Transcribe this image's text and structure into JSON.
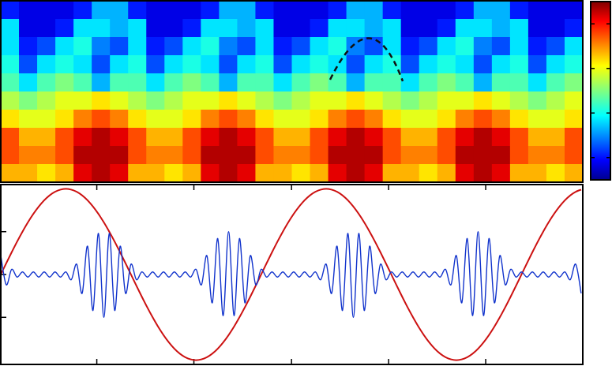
{
  "chart_data": [
    {
      "type": "heatmap",
      "colormap": "jet",
      "zlim": [
        0,
        1
      ],
      "zticks": [
        0.125,
        0.375,
        0.625,
        0.875
      ],
      "z": [
        [
          0.15,
          0.1,
          0.1,
          0.1,
          0.15,
          0.3,
          0.3,
          0.15,
          0.1,
          0.1,
          0.1,
          0.15,
          0.3,
          0.3,
          0.15,
          0.1,
          0.1,
          0.1,
          0.15,
          0.3,
          0.3,
          0.15,
          0.1,
          0.1,
          0.1,
          0.15,
          0.3,
          0.3,
          0.15,
          0.1,
          0.1,
          0.1
        ],
        [
          0.35,
          0.1,
          0.1,
          0.15,
          0.35,
          0.35,
          0.3,
          0.35,
          0.1,
          0.1,
          0.15,
          0.35,
          0.35,
          0.3,
          0.35,
          0.1,
          0.1,
          0.15,
          0.35,
          0.35,
          0.3,
          0.35,
          0.1,
          0.1,
          0.15,
          0.35,
          0.35,
          0.3,
          0.35,
          0.1,
          0.1,
          0.15
        ],
        [
          0.35,
          0.15,
          0.2,
          0.35,
          0.4,
          0.25,
          0.2,
          0.35,
          0.15,
          0.2,
          0.35,
          0.4,
          0.25,
          0.2,
          0.35,
          0.15,
          0.2,
          0.35,
          0.4,
          0.25,
          0.2,
          0.35,
          0.15,
          0.2,
          0.35,
          0.4,
          0.25,
          0.2,
          0.35,
          0.15,
          0.2,
          0.35
        ],
        [
          0.4,
          0.2,
          0.35,
          0.4,
          0.35,
          0.2,
          0.35,
          0.4,
          0.2,
          0.35,
          0.4,
          0.35,
          0.2,
          0.35,
          0.4,
          0.2,
          0.35,
          0.4,
          0.35,
          0.2,
          0.35,
          0.4,
          0.2,
          0.35,
          0.4,
          0.35,
          0.2,
          0.35,
          0.4,
          0.2,
          0.35,
          0.4
        ],
        [
          0.45,
          0.35,
          0.45,
          0.5,
          0.45,
          0.3,
          0.45,
          0.45,
          0.35,
          0.45,
          0.5,
          0.45,
          0.3,
          0.45,
          0.45,
          0.35,
          0.45,
          0.5,
          0.45,
          0.3,
          0.45,
          0.45,
          0.35,
          0.45,
          0.5,
          0.45,
          0.3,
          0.45,
          0.45,
          0.35,
          0.45,
          0.5
        ],
        [
          0.55,
          0.5,
          0.55,
          0.6,
          0.6,
          0.65,
          0.6,
          0.55,
          0.5,
          0.55,
          0.6,
          0.6,
          0.65,
          0.6,
          0.55,
          0.5,
          0.55,
          0.6,
          0.6,
          0.65,
          0.6,
          0.55,
          0.5,
          0.55,
          0.6,
          0.6,
          0.65,
          0.6,
          0.55,
          0.5,
          0.55,
          0.6
        ],
        [
          0.65,
          0.6,
          0.6,
          0.65,
          0.75,
          0.8,
          0.75,
          0.65,
          0.6,
          0.6,
          0.65,
          0.75,
          0.8,
          0.75,
          0.65,
          0.6,
          0.6,
          0.65,
          0.75,
          0.8,
          0.75,
          0.65,
          0.6,
          0.6,
          0.65,
          0.75,
          0.8,
          0.75,
          0.65,
          0.6,
          0.6,
          0.65
        ],
        [
          0.8,
          0.7,
          0.7,
          0.8,
          0.9,
          0.95,
          0.9,
          0.8,
          0.7,
          0.7,
          0.8,
          0.9,
          0.95,
          0.9,
          0.8,
          0.7,
          0.7,
          0.8,
          0.9,
          0.95,
          0.9,
          0.8,
          0.7,
          0.7,
          0.8,
          0.9,
          0.95,
          0.9,
          0.8,
          0.7,
          0.7,
          0.8
        ],
        [
          0.8,
          0.75,
          0.75,
          0.8,
          0.95,
          0.95,
          0.95,
          0.8,
          0.75,
          0.75,
          0.8,
          0.95,
          0.95,
          0.95,
          0.8,
          0.75,
          0.75,
          0.8,
          0.95,
          0.95,
          0.95,
          0.8,
          0.75,
          0.75,
          0.8,
          0.95,
          0.95,
          0.95,
          0.8,
          0.75,
          0.75,
          0.8
        ],
        [
          0.7,
          0.7,
          0.65,
          0.7,
          0.9,
          0.95,
          0.9,
          0.7,
          0.7,
          0.65,
          0.7,
          0.9,
          0.95,
          0.9,
          0.7,
          0.7,
          0.65,
          0.7,
          0.9,
          0.95,
          0.9,
          0.7,
          0.7,
          0.65,
          0.7,
          0.9,
          0.95,
          0.9,
          0.7,
          0.7,
          0.65,
          0.7
        ]
      ]
    },
    {
      "type": "line",
      "xlim": [
        0,
        107.3
      ],
      "ylim": [
        -1.05,
        1.05
      ],
      "xticks": [
        17.7,
        35.6,
        53.6,
        71.5,
        89.4
      ],
      "yticks": [
        -0.5,
        0,
        0.5
      ],
      "x": [
        0,
        1,
        2,
        3,
        4,
        5,
        6,
        7,
        8,
        9,
        10,
        11,
        12,
        13,
        14,
        15,
        16,
        17,
        18,
        19,
        20,
        21,
        22,
        23,
        24,
        25,
        26,
        27,
        28,
        29,
        30,
        31,
        32,
        33,
        34,
        35,
        36,
        37,
        38,
        39,
        40,
        41,
        42,
        43,
        44,
        45,
        46,
        47,
        48,
        49,
        50,
        51,
        52,
        53,
        54,
        55,
        56,
        57,
        58,
        59,
        60,
        61,
        62,
        63,
        64,
        65,
        66,
        67,
        68,
        69,
        70,
        71,
        72,
        73,
        74,
        75,
        76,
        77,
        78,
        79,
        80,
        81,
        82,
        83,
        84,
        85,
        86,
        87,
        88,
        89,
        90,
        91,
        92,
        93,
        94,
        95,
        96,
        97,
        98,
        99,
        100,
        101,
        102,
        103,
        104,
        105,
        106,
        107
      ],
      "series": [
        {
          "color": "#cc1111",
          "values": [
            0,
            0.131,
            0.259,
            0.383,
            0.5,
            0.609,
            0.707,
            0.793,
            0.866,
            0.924,
            0.966,
            0.991,
            1,
            0.991,
            0.966,
            0.924,
            0.866,
            0.793,
            0.707,
            0.609,
            0.5,
            0.383,
            0.259,
            0.131,
            0,
            -0.131,
            -0.259,
            -0.383,
            -0.5,
            -0.609,
            -0.707,
            -0.793,
            -0.866,
            -0.924,
            -0.966,
            -0.991,
            -1,
            -0.991,
            -0.966,
            -0.924,
            -0.866,
            -0.793,
            -0.707,
            -0.609,
            -0.5,
            -0.383,
            -0.259,
            -0.131,
            0,
            0.131,
            0.259,
            0.383,
            0.5,
            0.609,
            0.707,
            0.793,
            0.866,
            0.924,
            0.966,
            0.991,
            1,
            0.991,
            0.966,
            0.924,
            0.866,
            0.793,
            0.707,
            0.609,
            0.5,
            0.383,
            0.259,
            0.131,
            0,
            -0.131,
            -0.259,
            -0.383,
            -0.5,
            -0.609,
            -0.707,
            -0.793,
            -0.866,
            -0.924,
            -0.966,
            -0.991,
            -1,
            -0.991,
            -0.966,
            -0.924,
            -0.866,
            -0.793,
            -0.707,
            -0.609,
            -0.5,
            -0.383,
            -0.259,
            -0.131,
            0,
            0.131,
            0.259,
            0.383,
            0.5,
            0.609,
            0.707,
            0.793,
            0.866,
            0.924,
            0.966,
            0.991
          ]
        },
        {
          "color": "#1133cc",
          "values": [
            0.22,
            -0.12,
            0.06,
            -0.03,
            0.03,
            -0.03,
            0.03,
            -0.03,
            0.03,
            -0.03,
            0.03,
            -0.03,
            0.03,
            -0.06,
            0.12,
            -0.22,
            0.33,
            -0.42,
            0.48,
            -0.5,
            0.48,
            -0.42,
            0.33,
            -0.22,
            0.12,
            -0.06,
            0.03,
            -0.03,
            0.03,
            -0.03,
            0.03,
            -0.03,
            0.03,
            -0.03,
            0.03,
            -0.03,
            0.06,
            -0.12,
            0.22,
            -0.33,
            0.42,
            -0.48,
            0.5,
            -0.48,
            0.42,
            -0.33,
            0.22,
            -0.12,
            0.06,
            -0.03,
            0.03,
            -0.03,
            0.03,
            -0.03,
            0.03,
            -0.03,
            0.03,
            -0.03,
            0.03,
            -0.06,
            0.12,
            -0.22,
            0.33,
            -0.42,
            0.48,
            -0.5,
            0.48,
            -0.42,
            0.33,
            -0.22,
            0.12,
            -0.06,
            0.03,
            -0.03,
            0.03,
            -0.03,
            0.03,
            -0.03,
            0.03,
            -0.03,
            0.03,
            -0.03,
            0.06,
            -0.12,
            0.22,
            -0.33,
            0.42,
            -0.48,
            0.5,
            -0.48,
            0.42,
            -0.33,
            0.22,
            -0.12,
            0.06,
            -0.03,
            0.03,
            -0.03,
            0.03,
            -0.03,
            0.03,
            -0.03,
            0.03,
            -0.03,
            0.03,
            -0.06,
            0.12,
            -0.22
          ]
        }
      ]
    }
  ]
}
